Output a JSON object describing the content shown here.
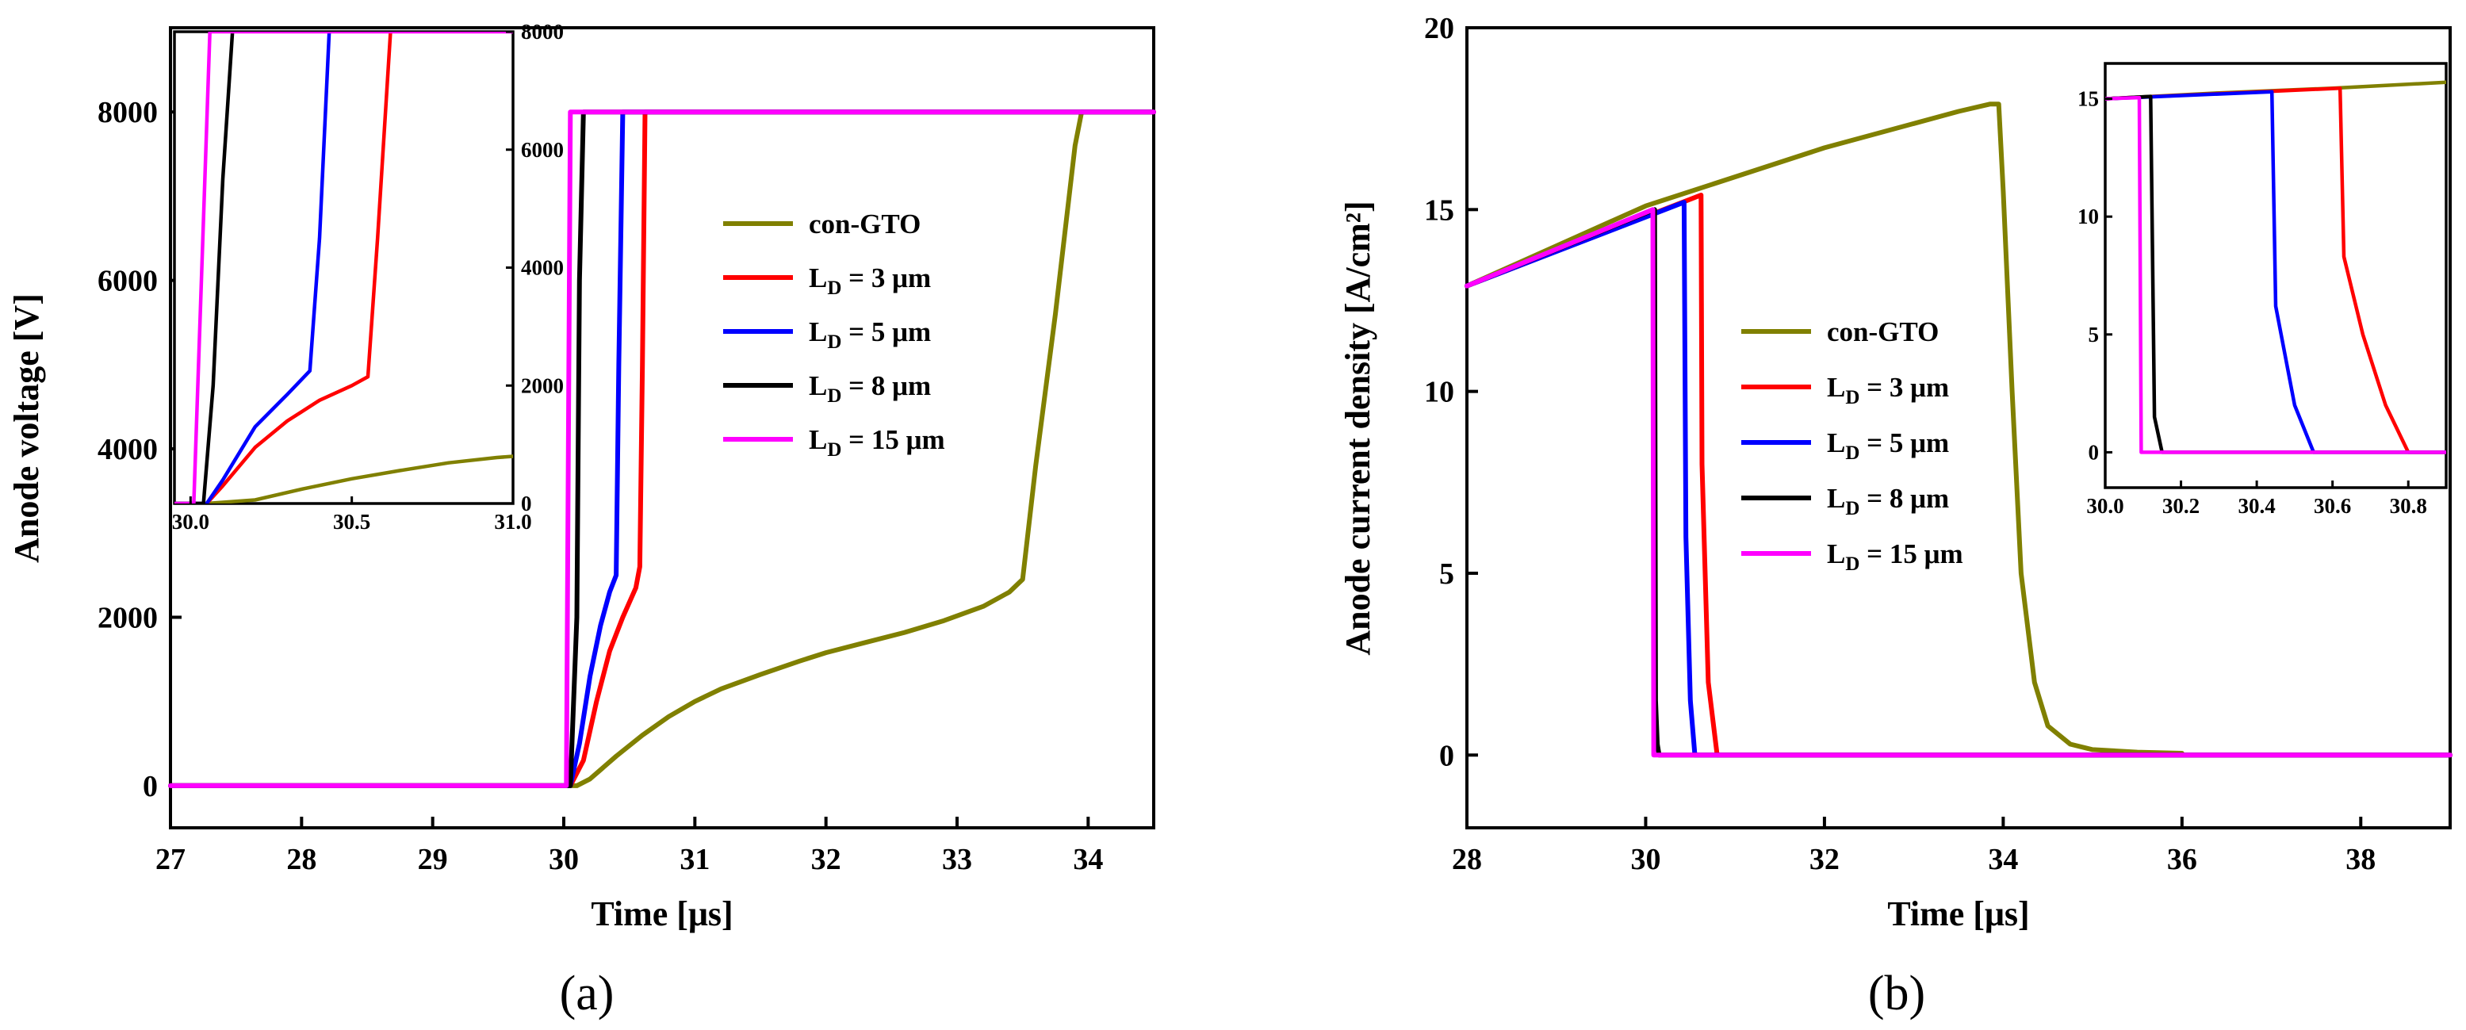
{
  "chart_data": [
    {
      "type": "line",
      "panel": "a",
      "caption": "(a)",
      "xlabel": "Time [μs]",
      "ylabel": "Anode voltage [V]",
      "xlim": [
        27,
        34.5
      ],
      "ylim": [
        -500,
        9000
      ],
      "xticks": [
        27,
        28,
        29,
        30,
        31,
        32,
        33,
        34
      ],
      "yticks": [
        0,
        2000,
        4000,
        6000,
        8000
      ],
      "legend": [
        "con-GTO",
        "L_D = 3 μm",
        "L_D = 5 μm",
        "L_D = 8 μm",
        "L_D = 15 μm"
      ],
      "series": [
        {
          "name": "con-GTO",
          "color": "#808000",
          "x": [
            27,
            30.0,
            30.1,
            30.2,
            30.4,
            30.6,
            30.8,
            31.0,
            31.2,
            31.5,
            31.8,
            32.0,
            32.3,
            32.6,
            32.9,
            33.2,
            33.4,
            33.5,
            33.6,
            33.75,
            33.9,
            33.95,
            34.5
          ],
          "y": [
            0,
            0,
            0,
            80,
            350,
            600,
            820,
            1000,
            1150,
            1320,
            1480,
            1580,
            1700,
            1820,
            1960,
            2130,
            2300,
            2450,
            3800,
            5600,
            7600,
            8000,
            8000
          ]
        },
        {
          "name": "L_D = 3 μm",
          "color": "#ff0000",
          "x": [
            27,
            30.05,
            30.15,
            30.25,
            30.35,
            30.45,
            30.55,
            30.58,
            30.6,
            30.62,
            34.5
          ],
          "y": [
            0,
            0,
            300,
            1000,
            1600,
            2000,
            2350,
            2600,
            5000,
            8000,
            8000
          ]
        },
        {
          "name": "L_D = 5 μm",
          "color": "#0000ff",
          "x": [
            27,
            30.05,
            30.12,
            30.2,
            30.28,
            30.35,
            30.4,
            30.42,
            30.45,
            34.5
          ],
          "y": [
            0,
            0,
            500,
            1300,
            1900,
            2300,
            2500,
            5000,
            8000,
            8000
          ]
        },
        {
          "name": "L_D = 8 μm",
          "color": "#000000",
          "x": [
            27,
            30.05,
            30.1,
            30.12,
            30.15,
            34.5
          ],
          "y": [
            0,
            0,
            2000,
            6000,
            8000,
            8000
          ]
        },
        {
          "name": "L_D = 15 μm",
          "color": "#ff00ff",
          "x": [
            27,
            30.02,
            30.05,
            34.5
          ],
          "y": [
            0,
            0,
            8000,
            8000
          ]
        }
      ],
      "inset": {
        "xlim": [
          29.95,
          31.0
        ],
        "ylim": [
          0,
          8000
        ],
        "xticks": [
          30.0,
          30.5,
          31.0
        ],
        "xtick_labels": [
          "30.0",
          "30.5",
          "31.0"
        ],
        "yticks": [
          0,
          2000,
          4000,
          6000,
          8000
        ],
        "series": [
          {
            "name": "con-GTO",
            "color": "#808000",
            "x": [
              29.95,
              30.05,
              30.2,
              30.35,
              30.5,
              30.65,
              30.8,
              30.95,
              31.0
            ],
            "y": [
              0,
              0,
              60,
              250,
              420,
              560,
              690,
              780,
              800
            ]
          },
          {
            "name": "L_D = 3 μm",
            "color": "#ff0000",
            "x": [
              29.95,
              30.05,
              30.1,
              30.2,
              30.3,
              30.4,
              30.5,
              30.55,
              30.58,
              30.62
            ],
            "y": [
              0,
              0,
              300,
              950,
              1400,
              1750,
              2000,
              2150,
              4500,
              8000
            ]
          },
          {
            "name": "L_D = 5 μm",
            "color": "#0000ff",
            "x": [
              29.95,
              30.05,
              30.1,
              30.2,
              30.3,
              30.37,
              30.4,
              30.43
            ],
            "y": [
              0,
              0,
              400,
              1300,
              1850,
              2250,
              4500,
              8000
            ]
          },
          {
            "name": "L_D = 8 μm",
            "color": "#000000",
            "x": [
              29.95,
              30.04,
              30.07,
              30.1,
              30.13
            ],
            "y": [
              0,
              0,
              2000,
              5500,
              8000
            ]
          },
          {
            "name": "L_D = 15 μm",
            "color": "#ff00ff",
            "x": [
              29.95,
              30.01,
              30.06,
              31.0
            ],
            "y": [
              0,
              0,
              8000,
              8000
            ]
          }
        ]
      }
    },
    {
      "type": "line",
      "panel": "b",
      "caption": "(b)",
      "xlabel": "Time [μs]",
      "ylabel": "Anode current density [A/cm²]",
      "xlim": [
        28,
        39
      ],
      "ylim": [
        -2,
        20
      ],
      "xticks": [
        28,
        30,
        32,
        34,
        36,
        38
      ],
      "yticks": [
        0,
        5,
        10,
        15,
        20
      ],
      "legend": [
        "con-GTO",
        "L_D = 3 μm",
        "L_D = 5 μm",
        "L_D = 8 μm",
        "L_D = 15 μm"
      ],
      "series": [
        {
          "name": "con-GTO",
          "color": "#808000",
          "x": [
            28,
            30,
            32,
            33.5,
            33.85,
            33.95,
            34.0,
            34.1,
            34.2,
            34.35,
            34.5,
            34.75,
            35.0,
            35.5,
            36.0
          ],
          "y": [
            12.9,
            15.1,
            16.7,
            17.7,
            17.9,
            17.9,
            15.5,
            10,
            5,
            2,
            0.8,
            0.3,
            0.15,
            0.08,
            0.05
          ]
        },
        {
          "name": "L_D = 3 μm",
          "color": "#ff0000",
          "x": [
            28,
            30.62,
            30.63,
            30.7,
            30.8,
            39
          ],
          "y": [
            12.9,
            15.4,
            8,
            2,
            0,
            0
          ]
        },
        {
          "name": "L_D = 5 μm",
          "color": "#0000ff",
          "x": [
            28,
            30.43,
            30.45,
            30.5,
            30.55,
            39
          ],
          "y": [
            12.9,
            15.2,
            6,
            1.5,
            0,
            0
          ]
        },
        {
          "name": "L_D = 8 μm",
          "color": "#000000",
          "x": [
            28,
            30.1,
            30.11,
            30.13,
            30.15,
            39
          ],
          "y": [
            12.9,
            15.0,
            1.5,
            0.3,
            0,
            0
          ]
        },
        {
          "name": "L_D = 15 μm",
          "color": "#ff00ff",
          "x": [
            28,
            30.08,
            30.09,
            39
          ],
          "y": [
            12.9,
            15.0,
            0,
            0
          ]
        }
      ],
      "inset": {
        "xlim": [
          30.0,
          30.9
        ],
        "ylim": [
          -1.5,
          16.5
        ],
        "xticks": [
          30.0,
          30.2,
          30.4,
          30.6,
          30.8
        ],
        "xtick_labels": [
          "30.0",
          "30.2",
          "30.4",
          "30.6",
          "30.8"
        ],
        "yticks": [
          0,
          5,
          10,
          15
        ],
        "series": [
          {
            "name": "con-GTO",
            "color": "#808000",
            "x": [
              30.0,
              30.3,
              30.6,
              30.9
            ],
            "y": [
              15.0,
              15.25,
              15.45,
              15.7
            ]
          },
          {
            "name": "L_D = 3 μm",
            "color": "#ff0000",
            "x": [
              30.0,
              30.62,
              30.63,
              30.68,
              30.74,
              30.8,
              30.9
            ],
            "y": [
              15.0,
              15.45,
              8.3,
              5.0,
              2.0,
              0,
              0
            ]
          },
          {
            "name": "L_D = 5 μm",
            "color": "#0000ff",
            "x": [
              30.0,
              30.44,
              30.45,
              30.5,
              30.55,
              30.9
            ],
            "y": [
              15.0,
              15.3,
              6.2,
              2.0,
              0,
              0
            ]
          },
          {
            "name": "L_D = 8 μm",
            "color": "#000000",
            "x": [
              30.0,
              30.12,
              30.13,
              30.15,
              30.9
            ],
            "y": [
              15.0,
              15.1,
              1.5,
              0,
              0
            ]
          },
          {
            "name": "L_D = 15 μm",
            "color": "#ff00ff",
            "x": [
              30.0,
              30.09,
              30.095,
              30.9
            ],
            "y": [
              15.0,
              15.05,
              0,
              0
            ]
          }
        ]
      }
    }
  ]
}
